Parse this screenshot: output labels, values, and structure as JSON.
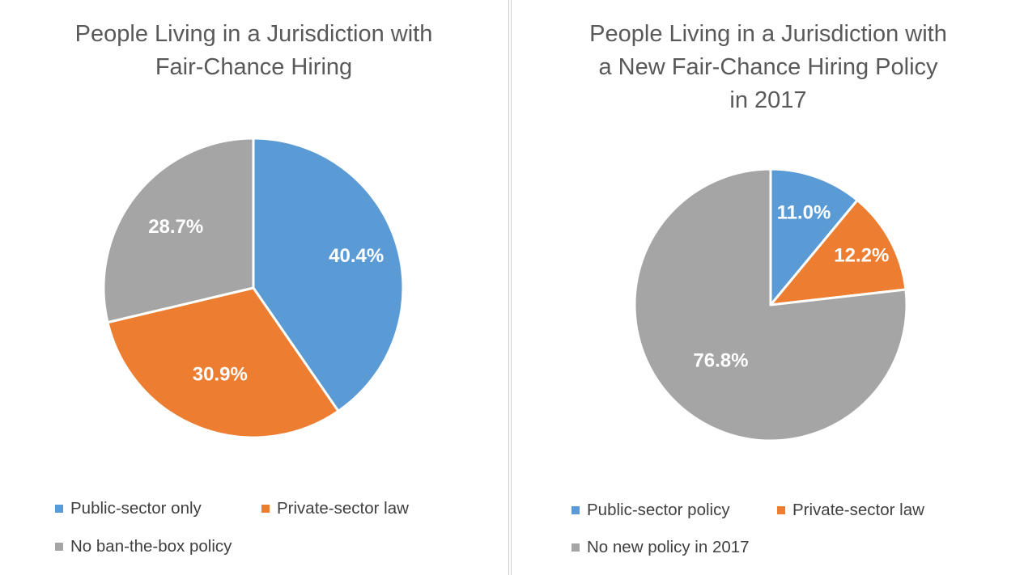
{
  "colors": {
    "blue": "#5b9bd5",
    "orange": "#ed7d31",
    "gray": "#a5a5a5"
  },
  "chart_data": [
    {
      "type": "pie",
      "title": "People Living in a Jurisdiction with\nFair-Chance Hiring",
      "categories": [
        "Public-sector only",
        "Private-sector law",
        "No ban-the-box policy"
      ],
      "values": [
        40.4,
        30.9,
        28.7
      ],
      "labels": [
        "40.4%",
        "30.9%",
        "28.7%"
      ],
      "colors": [
        "#5b9bd5",
        "#ed7d31",
        "#a5a5a5"
      ],
      "legend": "bottom"
    },
    {
      "type": "pie",
      "title": "People Living in a Jurisdiction with\na New Fair-Chance Hiring Policy\nin 2017",
      "categories": [
        "Public-sector policy",
        "Private-sector law",
        "No new policy in 2017"
      ],
      "values": [
        11.0,
        12.2,
        76.8
      ],
      "labels": [
        "11.0%",
        "12.2%",
        "76.8%"
      ],
      "colors": [
        "#5b9bd5",
        "#ed7d31",
        "#a5a5a5"
      ],
      "legend": "bottom"
    }
  ]
}
